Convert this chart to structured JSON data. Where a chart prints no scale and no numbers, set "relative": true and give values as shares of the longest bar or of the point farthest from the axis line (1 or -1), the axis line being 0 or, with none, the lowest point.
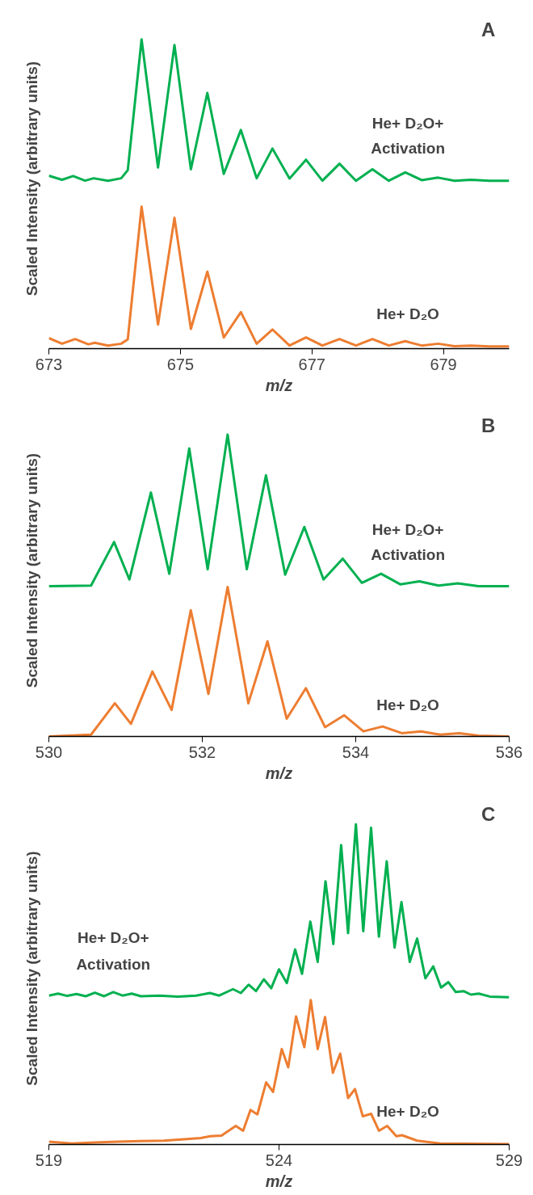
{
  "chart_data": [
    {
      "type": "line",
      "title": "A",
      "xlabel": "m/z",
      "ylabel": "Scaled Intensity (arbitrary units)",
      "relative": true,
      "xlim": [
        673,
        680
      ],
      "xticks": [
        673,
        675,
        677,
        679
      ],
      "tick_labels": "x",
      "grid": false,
      "series": [
        {
          "name": "He+ D₂O+ Activation",
          "color": "#00b050",
          "x": [
            673.0,
            673.2,
            673.37,
            673.55,
            673.68,
            673.9,
            674.1,
            674.2,
            674.41,
            674.66,
            674.91,
            675.16,
            675.41,
            675.66,
            675.92,
            676.16,
            676.4,
            676.66,
            676.91,
            677.16,
            677.42,
            677.67,
            677.92,
            678.17,
            678.42,
            678.67,
            678.92,
            679.17,
            679.42,
            679.7,
            680.0
          ],
          "values": [
            0.559,
            0.546,
            0.558,
            0.543,
            0.551,
            0.543,
            0.551,
            0.577,
            1.0,
            0.586,
            0.982,
            0.58,
            0.827,
            0.565,
            0.707,
            0.551,
            0.647,
            0.55,
            0.611,
            0.543,
            0.598,
            0.543,
            0.58,
            0.543,
            0.57,
            0.545,
            0.553,
            0.543,
            0.546,
            0.543,
            0.543
          ]
        },
        {
          "name": "He+ D₂O",
          "color": "#ed7d31",
          "x": [
            673.0,
            673.2,
            673.4,
            673.6,
            673.7,
            673.9,
            674.1,
            674.2,
            674.41,
            674.66,
            674.91,
            675.16,
            675.41,
            675.66,
            675.92,
            676.16,
            676.4,
            676.66,
            676.91,
            677.16,
            677.42,
            677.67,
            677.92,
            678.17,
            678.42,
            678.67,
            678.92,
            679.17,
            679.42,
            679.7,
            680.0
          ],
          "values": [
            0.034,
            0.016,
            0.031,
            0.014,
            0.019,
            0.01,
            0.016,
            0.03,
            0.459,
            0.078,
            0.423,
            0.064,
            0.249,
            0.036,
            0.118,
            0.016,
            0.062,
            0.01,
            0.036,
            0.01,
            0.031,
            0.01,
            0.031,
            0.01,
            0.024,
            0.01,
            0.016,
            0.008,
            0.01,
            0.007,
            0.007
          ]
        }
      ]
    },
    {
      "type": "line",
      "title": "B",
      "xlabel": "m/z",
      "ylabel": "Scaled Intensity (arbitrary units)",
      "relative": true,
      "xlim": [
        530,
        536
      ],
      "xticks": [
        530,
        532,
        534,
        536
      ],
      "tick_labels": "x",
      "grid": false,
      "series": [
        {
          "name": "He+ D₂O+ Activation",
          "color": "#00b050",
          "x": [
            530.0,
            530.55,
            530.85,
            531.05,
            531.33,
            531.57,
            531.83,
            532.07,
            532.33,
            532.58,
            532.83,
            533.08,
            533.33,
            533.58,
            533.83,
            534.08,
            534.33,
            534.58,
            534.83,
            535.08,
            535.33,
            535.6,
            536.0
          ],
          "values": [
            0.498,
            0.5,
            0.644,
            0.52,
            0.808,
            0.539,
            0.954,
            0.554,
            1.0,
            0.554,
            0.865,
            0.536,
            0.694,
            0.52,
            0.589,
            0.509,
            0.539,
            0.504,
            0.514,
            0.5,
            0.507,
            0.498,
            0.498
          ]
        },
        {
          "name": "He+ D₂O",
          "color": "#ed7d31",
          "x": [
            530.0,
            530.55,
            530.86,
            531.07,
            531.35,
            531.6,
            531.85,
            532.08,
            532.33,
            532.6,
            532.85,
            533.1,
            533.35,
            533.6,
            533.85,
            534.1,
            534.35,
            534.6,
            534.85,
            535.1,
            535.35,
            535.6,
            536.0
          ],
          "values": [
            0.0,
            0.006,
            0.11,
            0.042,
            0.215,
            0.088,
            0.418,
            0.141,
            0.495,
            0.11,
            0.315,
            0.059,
            0.16,
            0.031,
            0.07,
            0.017,
            0.033,
            0.011,
            0.017,
            0.006,
            0.011,
            0.003,
            0.0
          ]
        }
      ]
    },
    {
      "type": "line",
      "title": "C",
      "xlabel": "m/z",
      "ylabel": "Scaled Intensity (arbitrary units)",
      "relative": true,
      "xlim": [
        519,
        529
      ],
      "xticks": [
        519,
        524,
        529
      ],
      "tick_labels": "x",
      "grid": false,
      "series": [
        {
          "name": "He+ D₂O+ Activation",
          "color": "#00b050",
          "x": [
            519.0,
            519.2,
            519.4,
            519.6,
            519.8,
            520.0,
            520.2,
            520.4,
            520.6,
            520.8,
            521.0,
            521.4,
            521.8,
            522.2,
            522.5,
            522.7,
            523.0,
            523.17,
            523.34,
            523.5,
            523.67,
            523.83,
            524.0,
            524.17,
            524.35,
            524.5,
            524.68,
            524.84,
            525.01,
            525.18,
            525.35,
            525.5,
            525.67,
            525.83,
            526.0,
            526.17,
            526.34,
            526.51,
            526.66,
            526.84,
            527.0,
            527.18,
            527.35,
            527.52,
            527.68,
            527.84,
            528.01,
            528.17,
            528.34,
            528.58,
            529.0
          ],
          "values": [
            0.465,
            0.471,
            0.464,
            0.47,
            0.463,
            0.474,
            0.463,
            0.476,
            0.465,
            0.471,
            0.463,
            0.465,
            0.462,
            0.465,
            0.473,
            0.465,
            0.485,
            0.473,
            0.499,
            0.479,
            0.516,
            0.488,
            0.547,
            0.504,
            0.609,
            0.533,
            0.696,
            0.57,
            0.822,
            0.626,
            0.935,
            0.66,
            1.0,
            0.666,
            0.989,
            0.649,
            0.884,
            0.615,
            0.757,
            0.57,
            0.643,
            0.519,
            0.556,
            0.49,
            0.507,
            0.476,
            0.479,
            0.468,
            0.471,
            0.462,
            0.46
          ]
        },
        {
          "name": "He+ D₂O",
          "color": "#ed7d31",
          "x": [
            519.0,
            519.5,
            520.0,
            520.5,
            521.0,
            521.5,
            522.0,
            522.3,
            522.5,
            522.75,
            523.06,
            523.22,
            523.38,
            523.53,
            523.72,
            523.87,
            524.06,
            524.2,
            524.37,
            524.55,
            524.69,
            524.84,
            525.0,
            525.17,
            525.33,
            525.5,
            525.65,
            525.82,
            526.0,
            526.17,
            526.35,
            526.55,
            526.67,
            527.0,
            527.5,
            529.0
          ],
          "values": [
            0.009,
            0.003,
            0.006,
            0.009,
            0.011,
            0.012,
            0.017,
            0.02,
            0.026,
            0.028,
            0.058,
            0.043,
            0.108,
            0.094,
            0.194,
            0.164,
            0.298,
            0.241,
            0.4,
            0.304,
            0.451,
            0.298,
            0.398,
            0.224,
            0.284,
            0.145,
            0.173,
            0.088,
            0.096,
            0.043,
            0.058,
            0.026,
            0.029,
            0.012,
            0.003,
            0.001
          ]
        }
      ]
    }
  ]
}
